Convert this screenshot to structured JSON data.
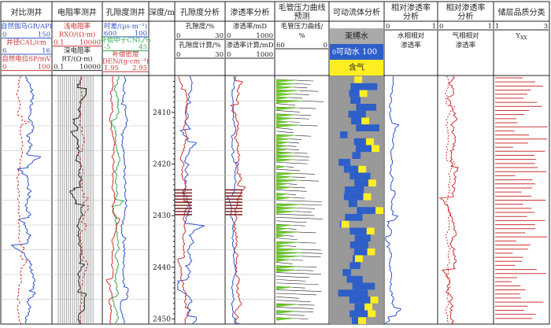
{
  "chart_data": {
    "type": "line",
    "depth": {
      "min": 2403,
      "max": 2451,
      "ticks": [
        2410,
        2420,
        2430,
        2440,
        2450
      ]
    },
    "tracks": [
      {
        "id": "t1",
        "title": "对比测井",
        "head": [
          {
            "text": "自然伽马GR/API",
            "color": "#3355cc"
          },
          {
            "l": "0",
            "r": "150",
            "color": "#3355cc"
          },
          {
            "text": "井径CAL/cm",
            "color": "#cc3333"
          },
          {
            "l": "6",
            "r": "16",
            "color": "#3355cc"
          },
          {
            "text": "自然电位SP/mV",
            "color": "#cc3333"
          },
          {
            "l": "0",
            "r": "100",
            "color": "#cc3333"
          }
        ]
      },
      {
        "id": "t2",
        "title": "电阻率测井",
        "head": [
          {
            "text": "浅电阻率",
            "color": "#cc3333"
          },
          {
            "text": "RXO/(Ω·m)",
            "color": "#cc3333"
          },
          {
            "l": "0.1",
            "r": "10000",
            "color": "#cc3333"
          },
          {
            "text": "深电阻率",
            "color": "#222222"
          },
          {
            "text": "RT/(Ω·m)",
            "color": "#222222"
          },
          {
            "l": "0.1",
            "r": "10000",
            "color": "#222222"
          }
        ]
      },
      {
        "id": "t3",
        "title": "孔隙度测井",
        "head": [
          {
            "text": "时差/(μs·m⁻¹)",
            "color": "#3355cc"
          },
          {
            "l": "600",
            "r": "100",
            "color": "#3355cc"
          },
          {
            "text": "补偿中子CNL/%",
            "color": "#33aa55"
          },
          {
            "l": "-5",
            "r": "45",
            "color": "#33aa55"
          },
          {
            "text": "补偿密度",
            "color": "#cc3333"
          },
          {
            "text": "DEN/(g·cm⁻³)",
            "color": "#cc3333"
          },
          {
            "l": "1.95",
            "r": "2.95",
            "color": "#cc3333"
          }
        ]
      },
      {
        "id": "t4",
        "title": "深度/m"
      },
      {
        "id": "t5",
        "title": "孔隙度分析",
        "head": [
          {
            "text": "孔隙度/%",
            "color": "#222222"
          },
          {
            "l": "0",
            "r": "30",
            "color": "#222222"
          },
          {
            "text": "孔隙度计算/%",
            "color": "#222222"
          },
          {
            "l": "0",
            "r": "30",
            "color": "#222222"
          }
        ]
      },
      {
        "id": "t6",
        "title": "渗透率分析",
        "head": [
          {
            "text": "渗透率/mD",
            "color": "#222222"
          },
          {
            "l": "0",
            "r": "1000",
            "color": "#222222"
          },
          {
            "text": "渗透率计算/mD",
            "color": "#222222"
          },
          {
            "l": "0",
            "r": "1000",
            "color": "#222222"
          }
        ]
      },
      {
        "id": "t7",
        "title": "毛管压力曲线预测",
        "head": [
          {
            "text": "毛管压力曲线/",
            "color": "#222222"
          },
          {
            "text": "%",
            "color": "#222222"
          },
          {
            "l": "60",
            "r": "0",
            "color": "#222222"
          }
        ]
      },
      {
        "id": "t8",
        "title": "可动流体分析",
        "head": [
          {
            "text": "束缚水",
            "color": "#222222"
          },
          {
            "text": "可动水 100",
            "color": "#ffffff"
          },
          {
            "text": "含气",
            "color": "#222222"
          }
        ]
      },
      {
        "id": "t9",
        "title": "相对渗透率分析",
        "head": [
          {
            "l": "0",
            "r": "1",
            "color": "#222222"
          },
          {
            "text": "水相相对",
            "color": "#222222"
          },
          {
            "text": "渗透率",
            "color": "#222222"
          }
        ]
      },
      {
        "id": "t10",
        "title": "相对渗透率分析",
        "head": [
          {
            "l": "0",
            "r": "1",
            "color": "#222222"
          },
          {
            "text": "气相相对",
            "color": "#222222"
          },
          {
            "text": "渗透率",
            "color": "#222222"
          }
        ]
      },
      {
        "id": "t11",
        "title": "储层品质分类",
        "head": [
          {
            "l": "1",
            "r": "3",
            "color": "#222222"
          },
          {
            "text": "Y",
            "sub": "XX",
            "color": "#222222"
          }
        ]
      }
    ]
  },
  "colors": {
    "gr": "#3355cc",
    "sp": "#cc3333",
    "cal": "#3355cc",
    "rt": "#222222",
    "rxo": "#cc3333",
    "ac": "#3355cc",
    "cnl": "#33aa55",
    "den": "#cc3333",
    "por": "#3355cc",
    "por_calc": "#cc3333",
    "perm": "#cc3333",
    "perm_calc": "#3355cc",
    "pc_fill": "#6ccc2a",
    "bound": "#ffee22",
    "movable": "#2e5fc8",
    "gas_cap": "#ffee22",
    "krw": "#3355cc",
    "krg": "#cc3333",
    "quality": "#cc3333",
    "band": "#7a1a1a"
  }
}
